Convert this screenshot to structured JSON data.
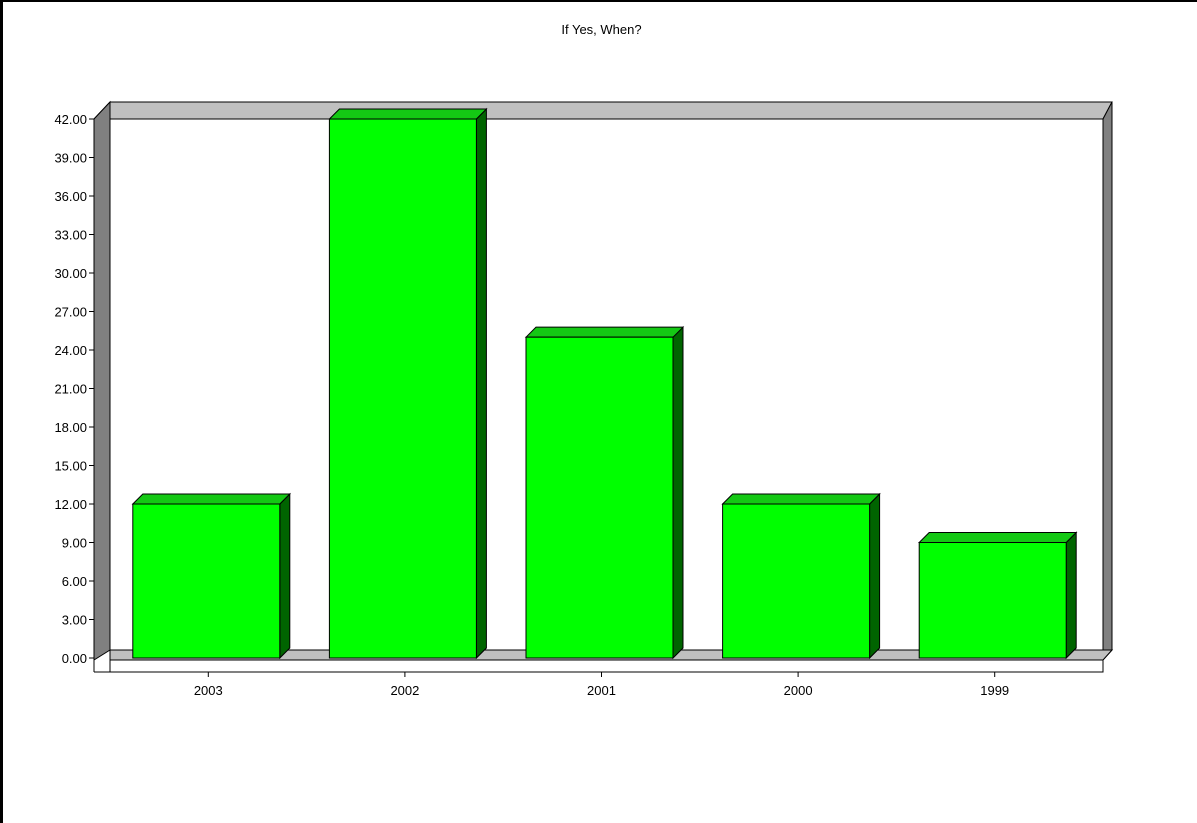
{
  "chart_data": {
    "type": "bar",
    "title": "If Yes, When?",
    "xlabel": "",
    "ylabel": "",
    "categories": [
      "2003",
      "2002",
      "2001",
      "2000",
      "1999"
    ],
    "values": [
      12,
      42,
      25,
      12,
      9
    ],
    "ylim": [
      0,
      42
    ],
    "y_ticks": [
      "0.00",
      "3.00",
      "6.00",
      "9.00",
      "12.00",
      "15.00",
      "18.00",
      "21.00",
      "24.00",
      "27.00",
      "30.00",
      "33.00",
      "36.00",
      "39.00",
      "42.00"
    ],
    "grid": false,
    "legend": "none",
    "style": "3d",
    "colors": {
      "bar_front": "#00ff00",
      "bar_top": "#14c814",
      "bar_side": "#006400",
      "wall": "#c0c0c0",
      "wall_dark": "#808080"
    }
  }
}
